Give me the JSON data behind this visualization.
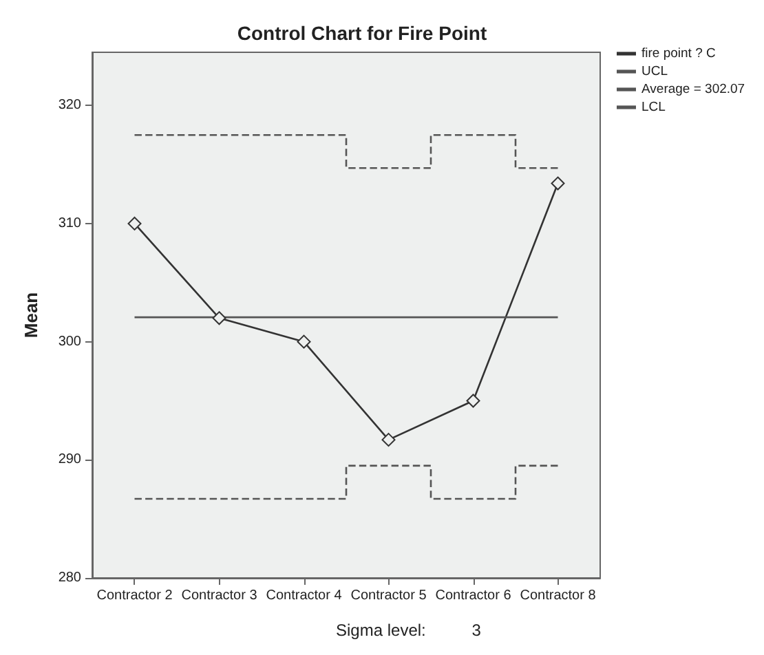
{
  "chart_data": {
    "type": "line",
    "title": "Control Chart for Fire Point",
    "ylabel": "Mean",
    "categories": [
      "Contractor 2",
      "Contractor 3",
      "Contractor 4",
      "Contractor 5",
      "Contractor 6",
      "Contractor 8"
    ],
    "series": [
      {
        "name": "fire point ? C",
        "color": "#333333",
        "marker": "diamond",
        "line_style": "solid",
        "values": [
          310,
          302,
          300,
          291.7,
          295,
          313.4
        ]
      },
      {
        "name": "UCL",
        "type": "step",
        "color": "#555555",
        "marker": "none",
        "line_style": "dashed",
        "values": [
          317.5,
          317.5,
          317.5,
          314.7,
          317.5,
          314.7
        ]
      },
      {
        "name": "Average = 302.07",
        "color": "#555555",
        "marker": "none",
        "line_style": "solid",
        "values": [
          302.07,
          302.07,
          302.07,
          302.07,
          302.07,
          302.07
        ]
      },
      {
        "name": "LCL",
        "type": "step",
        "color": "#555555",
        "marker": "none",
        "line_style": "dashed",
        "values": [
          286.7,
          286.7,
          286.7,
          289.5,
          286.7,
          289.5
        ]
      }
    ],
    "ylim": [
      280,
      324.5
    ],
    "yticks": [
      280,
      290,
      300,
      310,
      320
    ],
    "grid": false,
    "legend": "top right",
    "annotations": [
      "Sigma level:          3"
    ]
  }
}
